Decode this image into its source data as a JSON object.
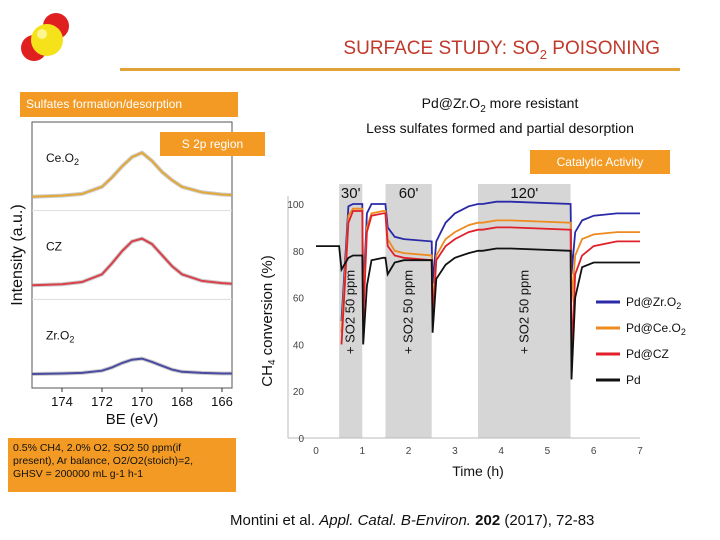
{
  "slide": {
    "title_main": "SURFACE STUDY: SO",
    "title_sub": "2",
    "title_tail": " POISONING",
    "box_sulfates": "Sulfates formation/desorption",
    "box_s2p": "S 2p region",
    "box_catalytic": "Catalytic Activity",
    "pd_note_line1": "Pd@Zr.O",
    "pd_note_line1_sub": "2",
    "pd_note_line1_tail": " more resistant",
    "pd_note_line2": "Less sulfates formed and partial desorption",
    "conditions_line1": "0.5% CH4, 2.0% O2, SO2 50 ppm(if",
    "conditions_line2": "present), Ar balance, O2/O2(stoich)=2,",
    "conditions_line3": "GHSV = 200000 mL g-1 h-1",
    "citation_authors": "Montini et al. ",
    "citation_journal": "Appl. Catal. B-Environ.",
    "citation_volume": " 202",
    "citation_rest": " (2017), 72-83",
    "colors": {
      "accent": "#f39a24",
      "title": "#c0392b",
      "rule": "#e2a23a"
    }
  },
  "chart_data": [
    {
      "type": "line",
      "title": "S 2p region",
      "xlabel": "BE (eV)",
      "ylabel": "Intensity (a.u.)",
      "xlim": [
        174,
        166
      ],
      "x_reversed": true,
      "xticks": [
        174,
        172,
        170,
        168,
        166
      ],
      "panels": [
        {
          "name": "Ce.O2",
          "color": "#e2a83a",
          "x": [
            175.5,
            174,
            173,
            172,
            171.5,
            171,
            170.5,
            170,
            169.5,
            169,
            168.5,
            168,
            167,
            166,
            165.5
          ],
          "y": [
            0.0,
            0.02,
            0.05,
            0.18,
            0.35,
            0.55,
            0.72,
            0.8,
            0.65,
            0.45,
            0.3,
            0.18,
            0.08,
            0.04,
            0.03
          ]
        },
        {
          "name": "CZ",
          "color": "#d9404a",
          "x": [
            175.5,
            174,
            173,
            172,
            171.5,
            171,
            170.5,
            170,
            169.5,
            169,
            168.5,
            168,
            167,
            166,
            165.5
          ],
          "y": [
            0.0,
            0.02,
            0.06,
            0.2,
            0.4,
            0.62,
            0.8,
            0.85,
            0.75,
            0.55,
            0.35,
            0.2,
            0.08,
            0.04,
            0.03
          ]
        },
        {
          "name": "Zr.O2",
          "color": "#4a4aa0",
          "x": [
            175.5,
            174,
            173,
            172,
            171.5,
            171,
            170.5,
            170,
            169.5,
            169,
            168.5,
            168,
            167,
            166,
            165.5
          ],
          "y": [
            0.0,
            0.01,
            0.02,
            0.06,
            0.12,
            0.2,
            0.26,
            0.28,
            0.22,
            0.15,
            0.08,
            0.04,
            0.02,
            0.01,
            0.01
          ]
        }
      ]
    },
    {
      "type": "line",
      "title": "Catalytic Activity",
      "xlabel": "Time (h)",
      "ylabel": "CH4 conversion (%)",
      "xlim": [
        0,
        7
      ],
      "ylim": [
        0,
        100
      ],
      "xticks": [
        0,
        1,
        2,
        3,
        4,
        5,
        6,
        7
      ],
      "yticks": [
        0,
        20,
        40,
        60,
        80,
        100
      ],
      "so2_windows": [
        {
          "start": 0.5,
          "end": 1.0,
          "label": "30'",
          "vlabel": "+ SO2 50 ppm"
        },
        {
          "start": 1.5,
          "end": 2.5,
          "label": "60'",
          "vlabel": "+ SO2 50 ppm"
        },
        {
          "start": 3.5,
          "end": 5.5,
          "label": "120'",
          "vlabel": "+ SO2 50 ppm"
        }
      ],
      "legend_position": "right",
      "series": [
        {
          "name": "Pd@Zr.O2",
          "color": "#2a2aa8",
          "x": [
            0,
            0.5,
            0.55,
            0.7,
            0.8,
            1.0,
            1.02,
            1.1,
            1.2,
            1.45,
            1.5,
            1.55,
            1.7,
            1.9,
            2.5,
            2.52,
            2.6,
            2.8,
            3.0,
            3.3,
            3.5,
            3.6,
            3.9,
            4.2,
            5.5,
            5.52,
            5.6,
            5.75,
            6.0,
            6.5,
            7.0
          ],
          "y": [
            null,
            null,
            50,
            99,
            100,
            100,
            60,
            96,
            100,
            100,
            100,
            90,
            86,
            85,
            84,
            66,
            84,
            92,
            96,
            99,
            100,
            100,
            101,
            101,
            100,
            70,
            88,
            93,
            95,
            96,
            96
          ]
        },
        {
          "name": "Pd@Ce.O2",
          "color": "#ee8a1e",
          "x": [
            0,
            0.5,
            0.55,
            0.7,
            0.8,
            1.0,
            1.02,
            1.1,
            1.2,
            1.45,
            1.5,
            1.55,
            1.7,
            1.9,
            2.5,
            2.52,
            2.6,
            2.8,
            3.0,
            3.3,
            3.5,
            3.6,
            3.9,
            4.2,
            5.5,
            5.52,
            5.6,
            5.75,
            6.0,
            6.5,
            7.0
          ],
          "y": [
            null,
            null,
            45,
            95,
            98,
            98,
            55,
            90,
            96,
            97,
            97,
            85,
            80,
            79,
            78,
            55,
            78,
            85,
            88,
            91,
            92,
            92,
            93,
            93,
            92,
            58,
            78,
            85,
            87,
            88,
            88
          ]
        },
        {
          "name": "Pd@CZ",
          "color": "#e0202a",
          "x": [
            0,
            0.5,
            0.55,
            0.7,
            0.8,
            1.0,
            1.02,
            1.1,
            1.2,
            1.45,
            1.5,
            1.55,
            1.7,
            1.9,
            2.5,
            2.52,
            2.6,
            2.8,
            3.0,
            3.3,
            3.5,
            3.6,
            3.9,
            4.2,
            5.5,
            5.52,
            5.6,
            5.75,
            6.0,
            6.5,
            7.0
          ],
          "y": [
            null,
            null,
            40,
            92,
            97,
            97,
            50,
            88,
            95,
            96,
            96,
            82,
            78,
            77,
            76,
            50,
            76,
            82,
            85,
            88,
            89,
            89,
            90,
            90,
            89,
            35,
            70,
            78,
            82,
            84,
            84
          ]
        },
        {
          "name": "Pd",
          "color": "#111111",
          "x": [
            0,
            0.2,
            0.5,
            0.55,
            0.7,
            0.8,
            1.0,
            1.02,
            1.1,
            1.2,
            1.45,
            1.5,
            1.55,
            1.7,
            1.9,
            2.5,
            2.52,
            2.6,
            2.8,
            3.0,
            3.3,
            3.5,
            3.6,
            3.9,
            4.2,
            5.5,
            5.52,
            5.6,
            5.75,
            6.0,
            6.5,
            7.0
          ],
          "y": [
            82,
            82,
            82,
            72,
            77,
            78,
            78,
            40,
            65,
            76,
            77,
            77,
            70,
            75,
            76,
            76,
            45,
            68,
            74,
            77,
            79,
            80,
            80,
            81,
            81,
            80,
            25,
            60,
            73,
            75,
            75,
            75
          ]
        }
      ]
    }
  ]
}
